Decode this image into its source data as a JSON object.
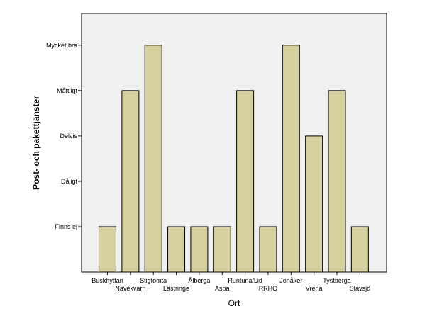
{
  "chart_data": {
    "type": "bar",
    "xlabel": "Ort",
    "ylabel": "Post- och pakettjänster",
    "categories": [
      "Buskhyttan",
      "Nävekvarn",
      "Stigtomta",
      "Lästringe",
      "Ålberga",
      "Aspa",
      "Runtuna/Lid",
      "RRHO",
      "Jönåker",
      "Vrena",
      "Tystberga",
      "Stavsjö"
    ],
    "y_levels": [
      "Finns ej",
      "Dåligt",
      "Delvis",
      "Måttligt",
      "Mycket bra"
    ],
    "values": [
      1,
      4,
      5,
      1,
      1,
      1,
      4,
      1,
      5,
      3,
      4,
      1
    ],
    "ylim": [
      0,
      5.7
    ],
    "grid": false,
    "colors": {
      "bar_fill": "#d6d09e",
      "bar_stroke": "#000000",
      "plot_bg": "#f0f0f0"
    }
  }
}
